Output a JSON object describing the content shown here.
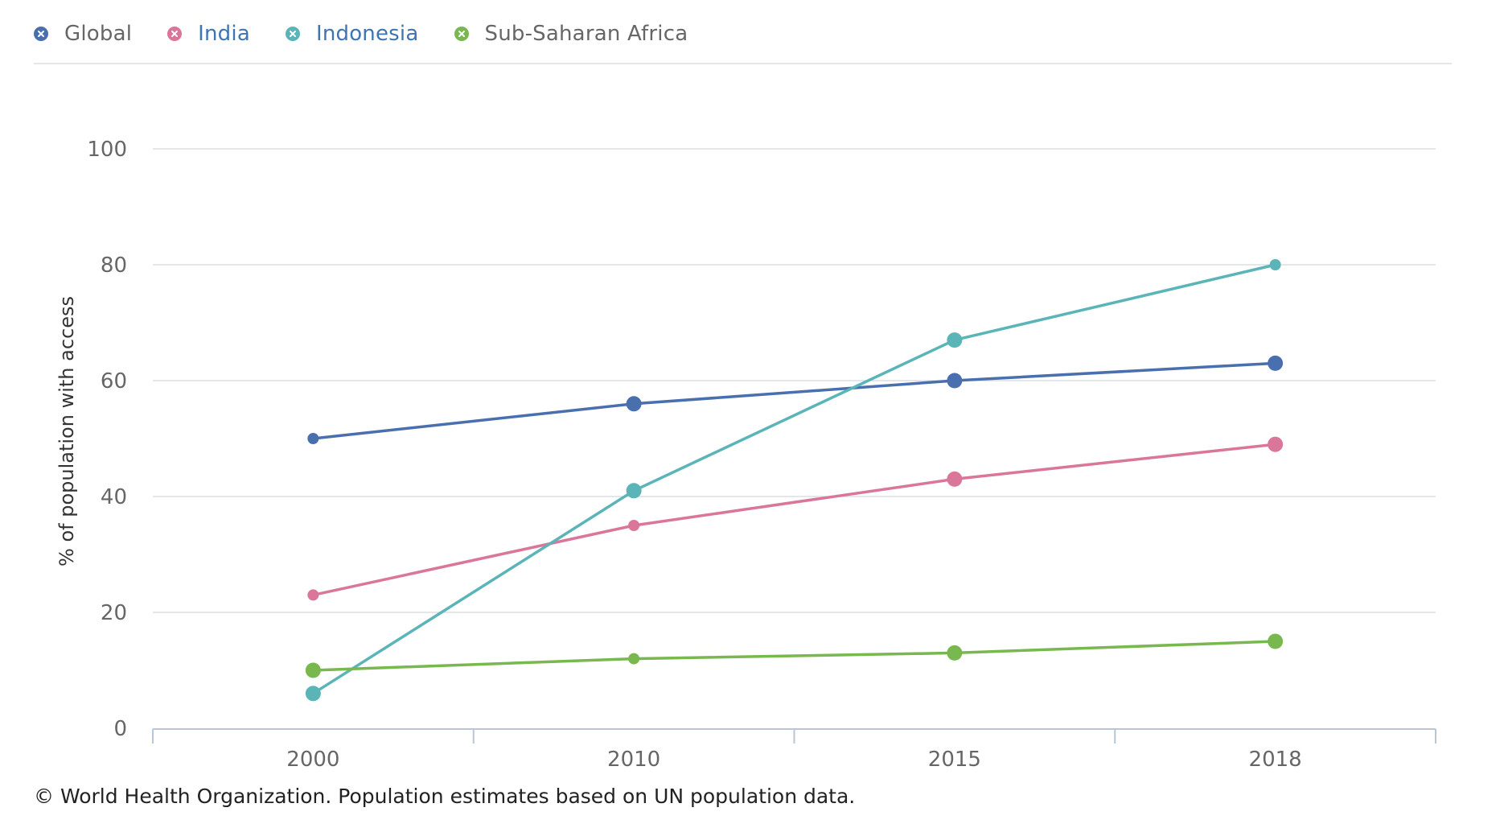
{
  "legend": {
    "items": [
      {
        "label": "Global",
        "color": "#4a6fae",
        "label_color": "#666666"
      },
      {
        "label": "India",
        "color": "#d9769a",
        "label_color": "#3e74b3"
      },
      {
        "label": "Indonesia",
        "color": "#5ab4b8",
        "label_color": "#3e74b3"
      },
      {
        "label": "Sub-Saharan Africa",
        "color": "#79b84e",
        "label_color": "#666666"
      }
    ]
  },
  "footer": {
    "credit": "© World Health Organization. Population estimates based on UN population data."
  },
  "chart_data": {
    "type": "line",
    "title": "",
    "xlabel": "",
    "ylabel": "% of population with access",
    "categories": [
      "2000",
      "2010",
      "2015",
      "2018"
    ],
    "ylim": [
      0,
      100
    ],
    "yticks": [
      0,
      20,
      40,
      60,
      80,
      100
    ],
    "grid": true,
    "legend_position": "top-left",
    "series": [
      {
        "name": "Global",
        "color": "#4a6fae",
        "values": [
          50,
          56,
          60,
          63
        ]
      },
      {
        "name": "India",
        "color": "#d9769a",
        "values": [
          23,
          35,
          43,
          49
        ]
      },
      {
        "name": "Indonesia",
        "color": "#5ab4b8",
        "values": [
          6,
          41,
          67,
          80
        ]
      },
      {
        "name": "Sub-Saharan Africa",
        "color": "#79b84e",
        "values": [
          10,
          12,
          13,
          15
        ]
      }
    ]
  }
}
